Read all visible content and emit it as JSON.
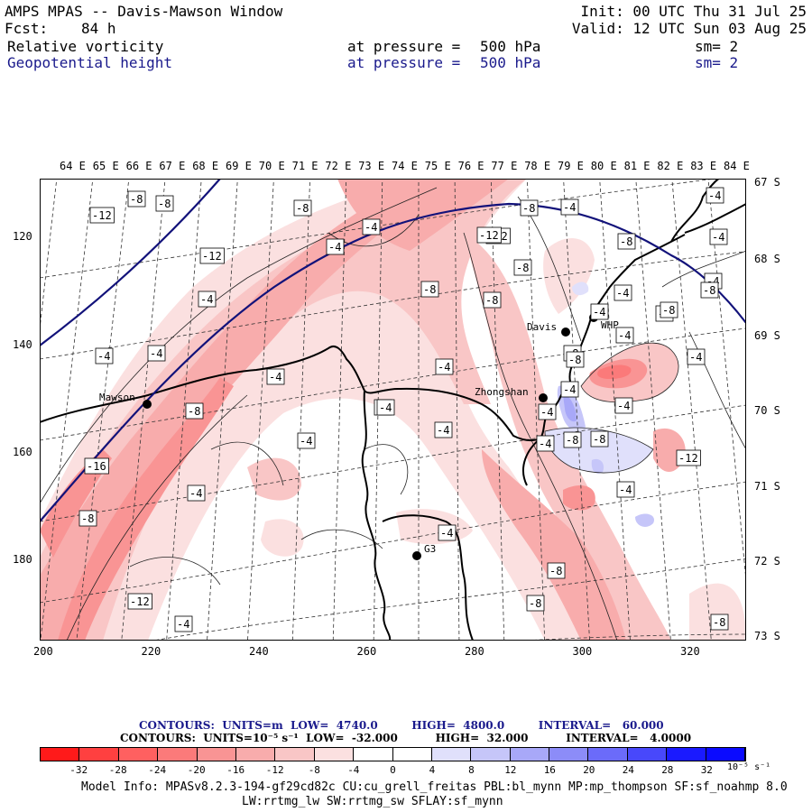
{
  "header": {
    "title": "AMPS MPAS -- Davis-Mawson Window",
    "fcst_label": "Fcst:",
    "fcst_value": "84 h",
    "init": "Init: 00 UTC Thu 31 Jul 25",
    "valid": "Valid: 12 UTC Sun 03 Aug 25",
    "fields": [
      {
        "name": "Relative vorticity",
        "pressure_label": "at pressure =",
        "pressure": "500 hPa",
        "sm": "sm= 2",
        "color": "#000000"
      },
      {
        "name": "Geopotential height",
        "pressure_label": "at pressure =",
        "pressure": "500 hPa",
        "sm": "sm= 2",
        "color": "#1a1a8c"
      }
    ]
  },
  "map": {
    "lon_labels": [
      "64 E",
      "65 E",
      "66 E",
      "67 E",
      "68 E",
      "69 E",
      "70 E",
      "71 E",
      "72 E",
      "73 E",
      "74 E",
      "75 E",
      "76 E",
      "77 E",
      "78 E",
      "79 E",
      "80 E",
      "81 E",
      "82 E",
      "83 E",
      "84 E"
    ],
    "lat_labels": [
      "67 S",
      "68 S",
      "69 S",
      "70 S",
      "71 S",
      "72 S",
      "73 S"
    ],
    "x_ticks": [
      "200",
      "220",
      "240",
      "260",
      "280",
      "300",
      "320"
    ],
    "y_ticks": [
      "120",
      "140",
      "160",
      "180"
    ],
    "stations": [
      "Mawson",
      "Davis",
      "WHP",
      "Zhongshan",
      "G3"
    ],
    "contour_labels": [
      "-12",
      "-8",
      "-8",
      "-8",
      "-4",
      "-4",
      "-8",
      "-12",
      "-4",
      "-4",
      "-4",
      "-4",
      "-8",
      "-4",
      "-8",
      "-4",
      "-12",
      "-8",
      "-8",
      "-4",
      "-8",
      "-8",
      "-4",
      "-4",
      "-8",
      "-4",
      "-4",
      "-4",
      "-8",
      "-12",
      "-8",
      "-16",
      "-8",
      "-4",
      "-12",
      "-4",
      "-4",
      "-8",
      "-8",
      "-4",
      "-4",
      "-8",
      "-4",
      "-4",
      "-8",
      "-4",
      "-4",
      "-8",
      "-4",
      "-8",
      "-4",
      "-4",
      "-12",
      "-8"
    ]
  },
  "legend": {
    "contours_geo": "CONTOURS:  UNITS=m  LOW=  4740.0         HIGH=  4800.0         INTERVAL=   60.000",
    "contours_vort": "CONTOURS:  UNITS=10⁻⁵ s⁻¹  LOW=  -32.000          HIGH=  32.000          INTERVAL=   4.0000",
    "colorbar_ticks": [
      "-32",
      "-28",
      "-24",
      "-20",
      "-16",
      "-12",
      "-8",
      "-4",
      "0",
      "4",
      "8",
      "12",
      "16",
      "20",
      "24",
      "28",
      "32"
    ],
    "colorbar_unit": "10⁻⁵ s⁻¹",
    "colorbar_colors": [
      "#ff1a1a",
      "#ff4040",
      "#ff6060",
      "#fb7a7a",
      "#f99494",
      "#f8acac",
      "#f9c6c6",
      "#fbe0e0",
      "#ffffff",
      "#ffffff",
      "#e0e0fb",
      "#c6c6f9",
      "#a8a8f8",
      "#8c8cf8",
      "#6b6bfa",
      "#4848fb",
      "#1a1aff",
      "#0a0aff"
    ]
  },
  "footer": {
    "line1": "Model Info: MPASv8.2.3-194-gf29cd82c CU:cu_grell_freitas PBL:bl_mynn MP:mp_thompson SF:sf_noahmp 8.0",
    "line2": "LW:rrtmg_lw SW:rrtmg_sw SFLAY:sf_mynn"
  }
}
